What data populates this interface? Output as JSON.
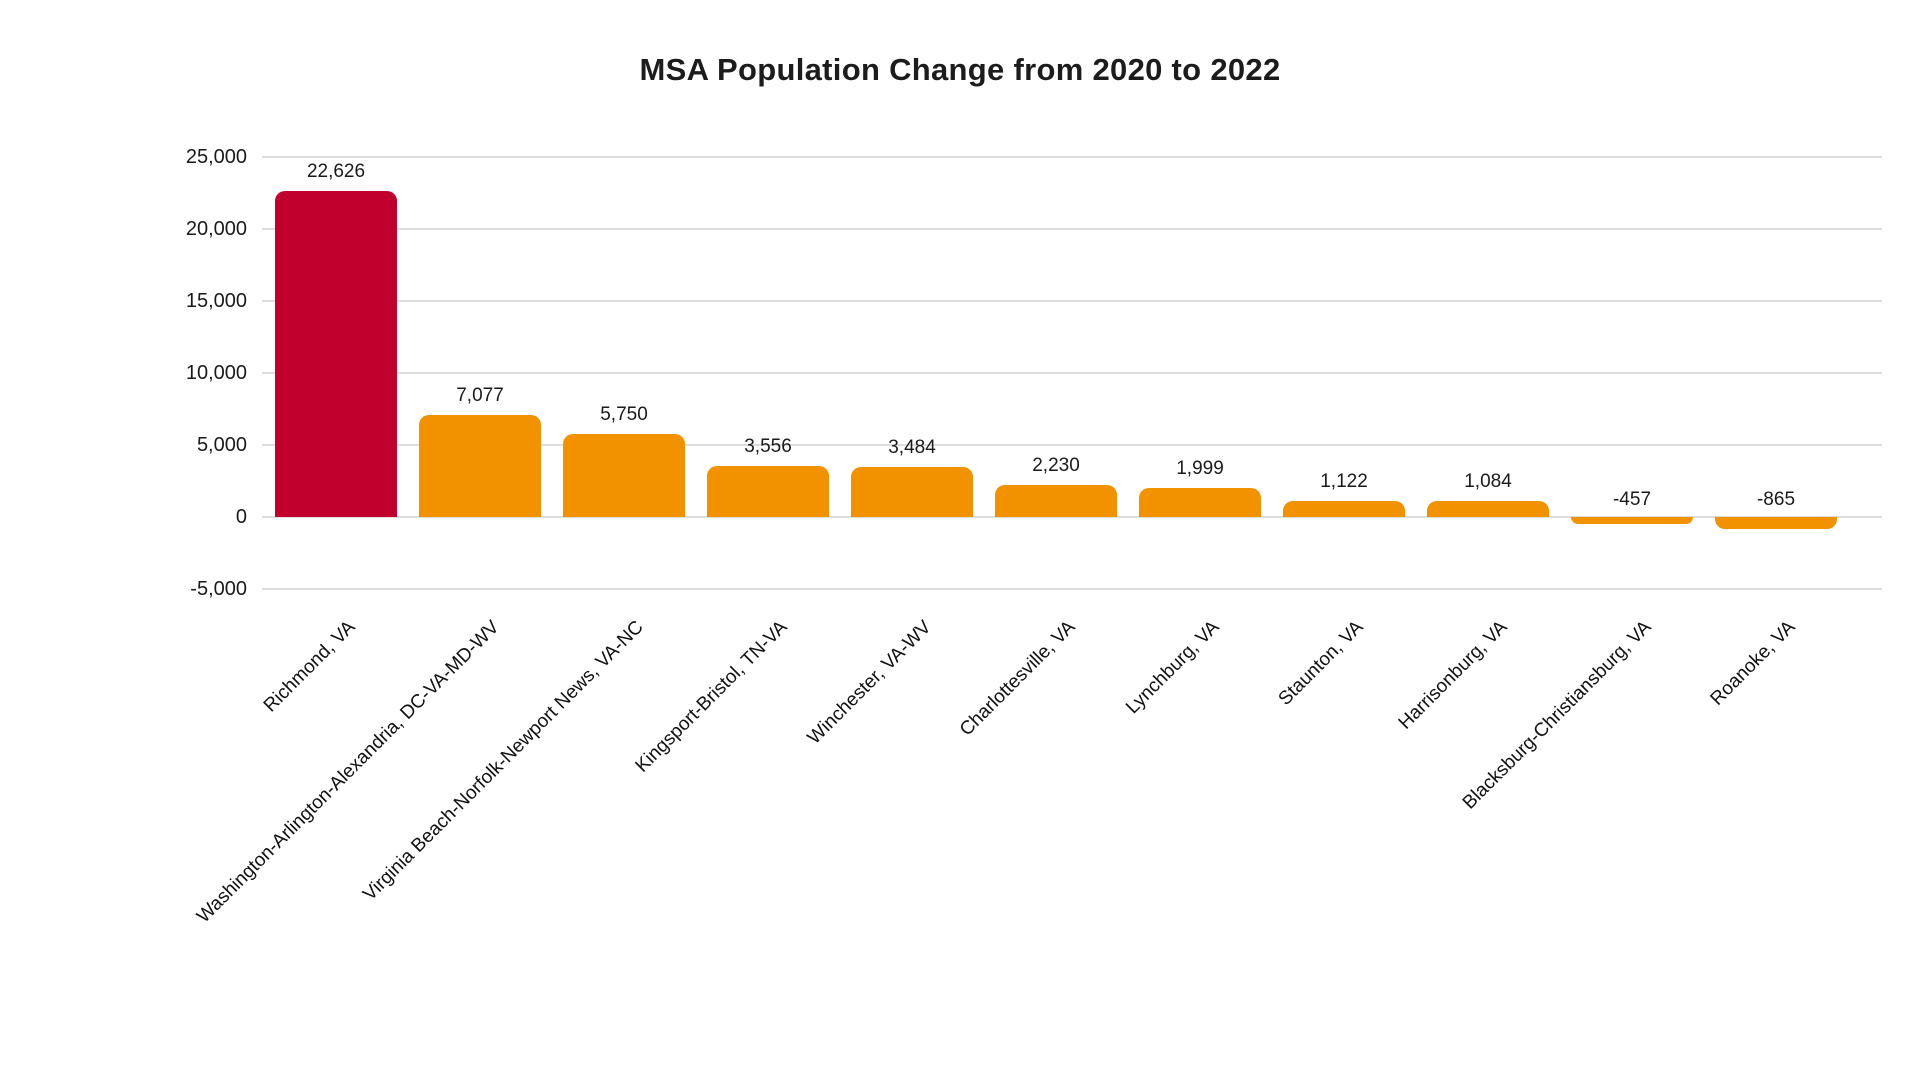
{
  "chart_data": {
    "type": "bar",
    "title": "MSA Population Change from 2020 to 2022",
    "xlabel": "",
    "ylabel": "",
    "categories": [
      "Richmond, VA",
      "Washington-Arlington-Alexandria, DC-VA-MD-WV",
      "Virginia Beach-Norfolk-Newport News, VA-NC",
      "Kingsport-Bristol, TN-VA",
      "Winchester, VA-WV",
      "Charlottesville, VA",
      "Lynchburg, VA",
      "Staunton, VA",
      "Harrisonburg, VA",
      "Blacksburg-Christiansburg, VA",
      "Roanoke, VA"
    ],
    "values": [
      22626,
      7077,
      5750,
      3556,
      3484,
      2230,
      1999,
      1122,
      1084,
      -457,
      -865
    ],
    "value_labels": [
      "22,626",
      "7,077",
      "5,750",
      "3,556",
      "3,484",
      "2,230",
      "1,999",
      "1,122",
      "1,084",
      "-457",
      "-865"
    ],
    "yticks": [
      25000,
      20000,
      15000,
      10000,
      5000,
      0,
      -5000
    ],
    "ytick_labels": [
      "25,000",
      "20,000",
      "15,000",
      "10,000",
      "5,000",
      "0",
      "-5,000"
    ],
    "ylim": [
      -5000,
      25000
    ],
    "grid": true,
    "legend": false,
    "highlight_index": 0,
    "colors": {
      "highlight_bar": "#C1002D",
      "default_bar": "#F29200",
      "gridline": "#DDDDDD",
      "text": "#1A1A1A"
    }
  }
}
